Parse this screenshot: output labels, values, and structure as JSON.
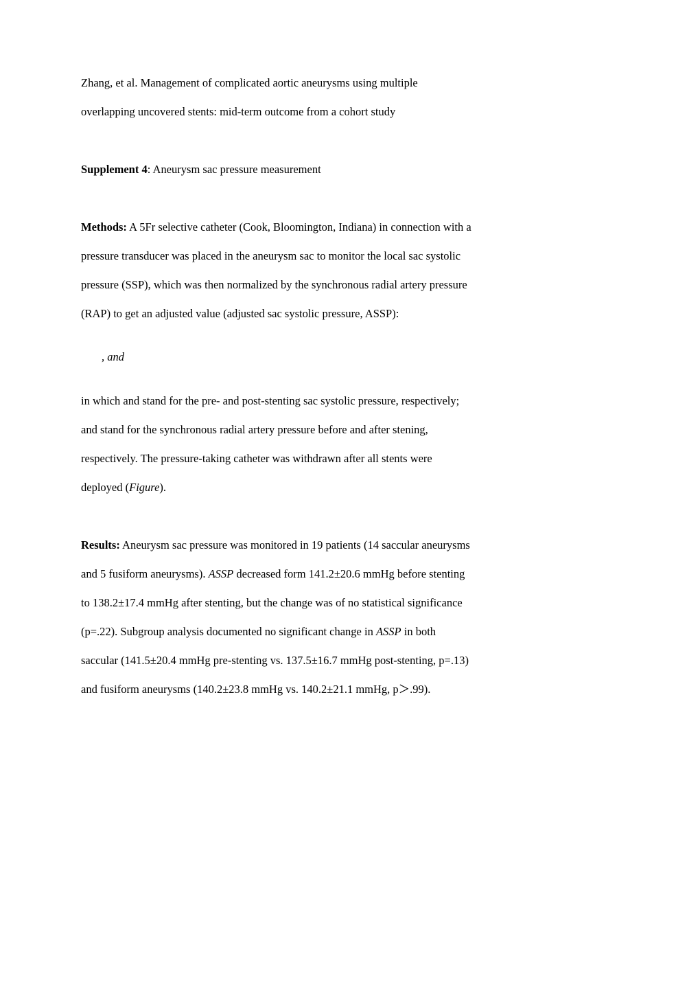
{
  "header": {
    "line1": "Zhang, et al. Management of complicated aortic aneurysms using multiple",
    "line2": "overlapping uncovered stents: mid-term outcome from a cohort study"
  },
  "supplement": {
    "label": "Supplement 4",
    "title": ": Aneurysm sac pressure measurement"
  },
  "methods": {
    "label": "Methods:",
    "text1": " A 5Fr selective catheter (Cook, Bloomington, Indiana) in connection with a",
    "text2": "pressure transducer was placed in the aneurysm sac to monitor the local sac systolic",
    "text3": "pressure (SSP), which was then normalized by the synchronous radial artery pressure",
    "text4": "(RAP) to get an adjusted value (adjusted sac systolic pressure, ASSP):"
  },
  "formula": {
    "text": ", and"
  },
  "explanation": {
    "line1": "in which and  stand for the pre- and post-stenting sac systolic pressure, respectively;",
    "line2": "and  stand for the synchronous radial artery pressure before and after stening,",
    "line3": "respectively. The pressure-taking catheter was withdrawn after all stents were",
    "line4a": "deployed (",
    "line4b": "Figure",
    "line4c": ")."
  },
  "results": {
    "label": "Results:",
    "text1": " Aneurysm sac pressure was monitored in 19 patients (14 saccular aneurysms",
    "text2a": "and 5 fusiform aneurysms). ",
    "text2b": "ASSP",
    "text2c": " decreased form 141.2±20.6 mmHg before stenting",
    "text3": "to 138.2±17.4 mmHg after stenting, but the change was of no statistical significance",
    "text4a": "(p=.22). Subgroup analysis documented no significant change in ",
    "text4b": "ASSP",
    "text4c": " in both",
    "text5": "saccular (141.5±20.4 mmHg pre-stenting vs. 137.5±16.7 mmHg post-stenting, p=.13)",
    "text6": "and fusiform aneurysms (140.2±23.8 mmHg vs. 140.2±21.1 mmHg, p＞.99)."
  }
}
